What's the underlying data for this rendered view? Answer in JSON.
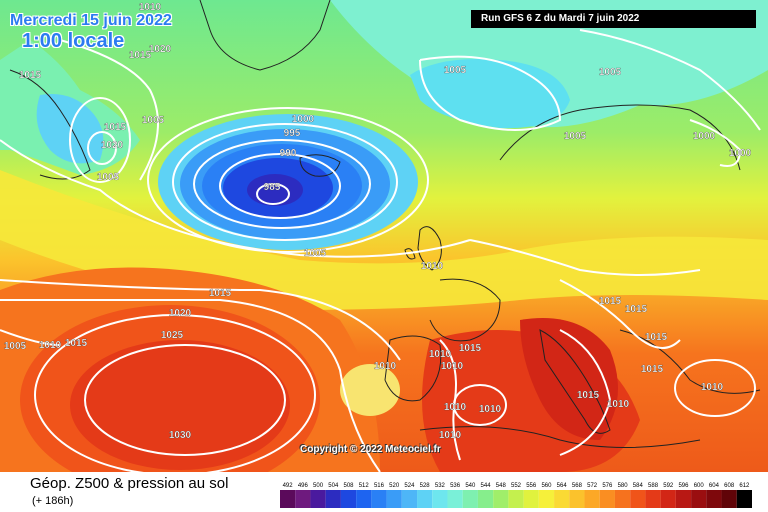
{
  "header": {
    "date_label": "Mercredi 15 juin 2022",
    "hour_label": "1:00 locale",
    "run_label": "Run GFS 6 Z du Mardi 7 juin 2022"
  },
  "copyright": "Copyright © 2022 Meteociel.fr",
  "footer": {
    "title": "Géop. Z500 & pression au sol",
    "subtitle": "(+ 186h)"
  },
  "legend": {
    "values": [
      "492",
      "496",
      "500",
      "504",
      "508",
      "512",
      "516",
      "520",
      "524",
      "528",
      "532",
      "536",
      "540",
      "544",
      "548",
      "552",
      "556",
      "560",
      "564",
      "568",
      "572",
      "576",
      "580",
      "584",
      "588",
      "592",
      "596",
      "600",
      "604",
      "608",
      "612"
    ],
    "colors": [
      "#5b0a5b",
      "#6e1a7e",
      "#4a1a9e",
      "#2c2cc0",
      "#1e48e0",
      "#1e64f0",
      "#2a80f5",
      "#3a9cf7",
      "#4eb6f7",
      "#5ed2f5",
      "#6ee6ee",
      "#7af0d8",
      "#7ef0b0",
      "#86ee8c",
      "#a0ee6a",
      "#c4f04e",
      "#e0f23e",
      "#f6f03a",
      "#fada34",
      "#fbc22c",
      "#fca826",
      "#fa8e22",
      "#f6721e",
      "#f0541a",
      "#e43a18",
      "#d22616",
      "#b81814",
      "#9a0e10",
      "#7e080c",
      "#600408",
      "#000000"
    ]
  },
  "isobars": [
    {
      "label": "1010",
      "value": 1010
    },
    {
      "label": "1020",
      "value": 1020
    },
    {
      "label": "1015",
      "value": 1015
    },
    {
      "label": "1015",
      "value": 1015
    },
    {
      "label": "1005",
      "value": 1005
    },
    {
      "label": "1015",
      "value": 1015
    },
    {
      "label": "1020",
      "value": 1020
    },
    {
      "label": "1005",
      "value": 1005
    },
    {
      "label": "1000",
      "value": 1000
    },
    {
      "label": "995",
      "value": 995
    },
    {
      "label": "990",
      "value": 990
    },
    {
      "label": "985",
      "value": 985
    },
    {
      "label": "1005",
      "value": 1005
    },
    {
      "label": "1005",
      "value": 1005
    },
    {
      "label": "1005",
      "value": 1005
    },
    {
      "label": "1005",
      "value": 1005
    },
    {
      "label": "1000",
      "value": 1000
    },
    {
      "label": "1000",
      "value": 1000
    },
    {
      "label": "1010",
      "value": 1010
    },
    {
      "label": "1015",
      "value": 1015
    },
    {
      "label": "1020",
      "value": 1020
    },
    {
      "label": "1025",
      "value": 1025
    },
    {
      "label": "1030",
      "value": 1030
    },
    {
      "label": "1005",
      "value": 1005
    },
    {
      "label": "1010",
      "value": 1010
    },
    {
      "label": "1015",
      "value": 1015
    },
    {
      "label": "1010",
      "value": 1010
    },
    {
      "label": "1010",
      "value": 1010
    },
    {
      "label": "1015",
      "value": 1015
    },
    {
      "label": "1010",
      "value": 1010
    },
    {
      "label": "1010",
      "value": 1010
    },
    {
      "label": "1010",
      "value": 1010
    },
    {
      "label": "1010",
      "value": 1010
    },
    {
      "label": "1015",
      "value": 1015
    },
    {
      "label": "1015",
      "value": 1015
    },
    {
      "label": "1015",
      "value": 1015
    },
    {
      "label": "1015",
      "value": 1015
    },
    {
      "label": "1015",
      "value": 1015
    },
    {
      "label": "1010",
      "value": 1010
    },
    {
      "label": "1010",
      "value": 1010
    }
  ]
}
